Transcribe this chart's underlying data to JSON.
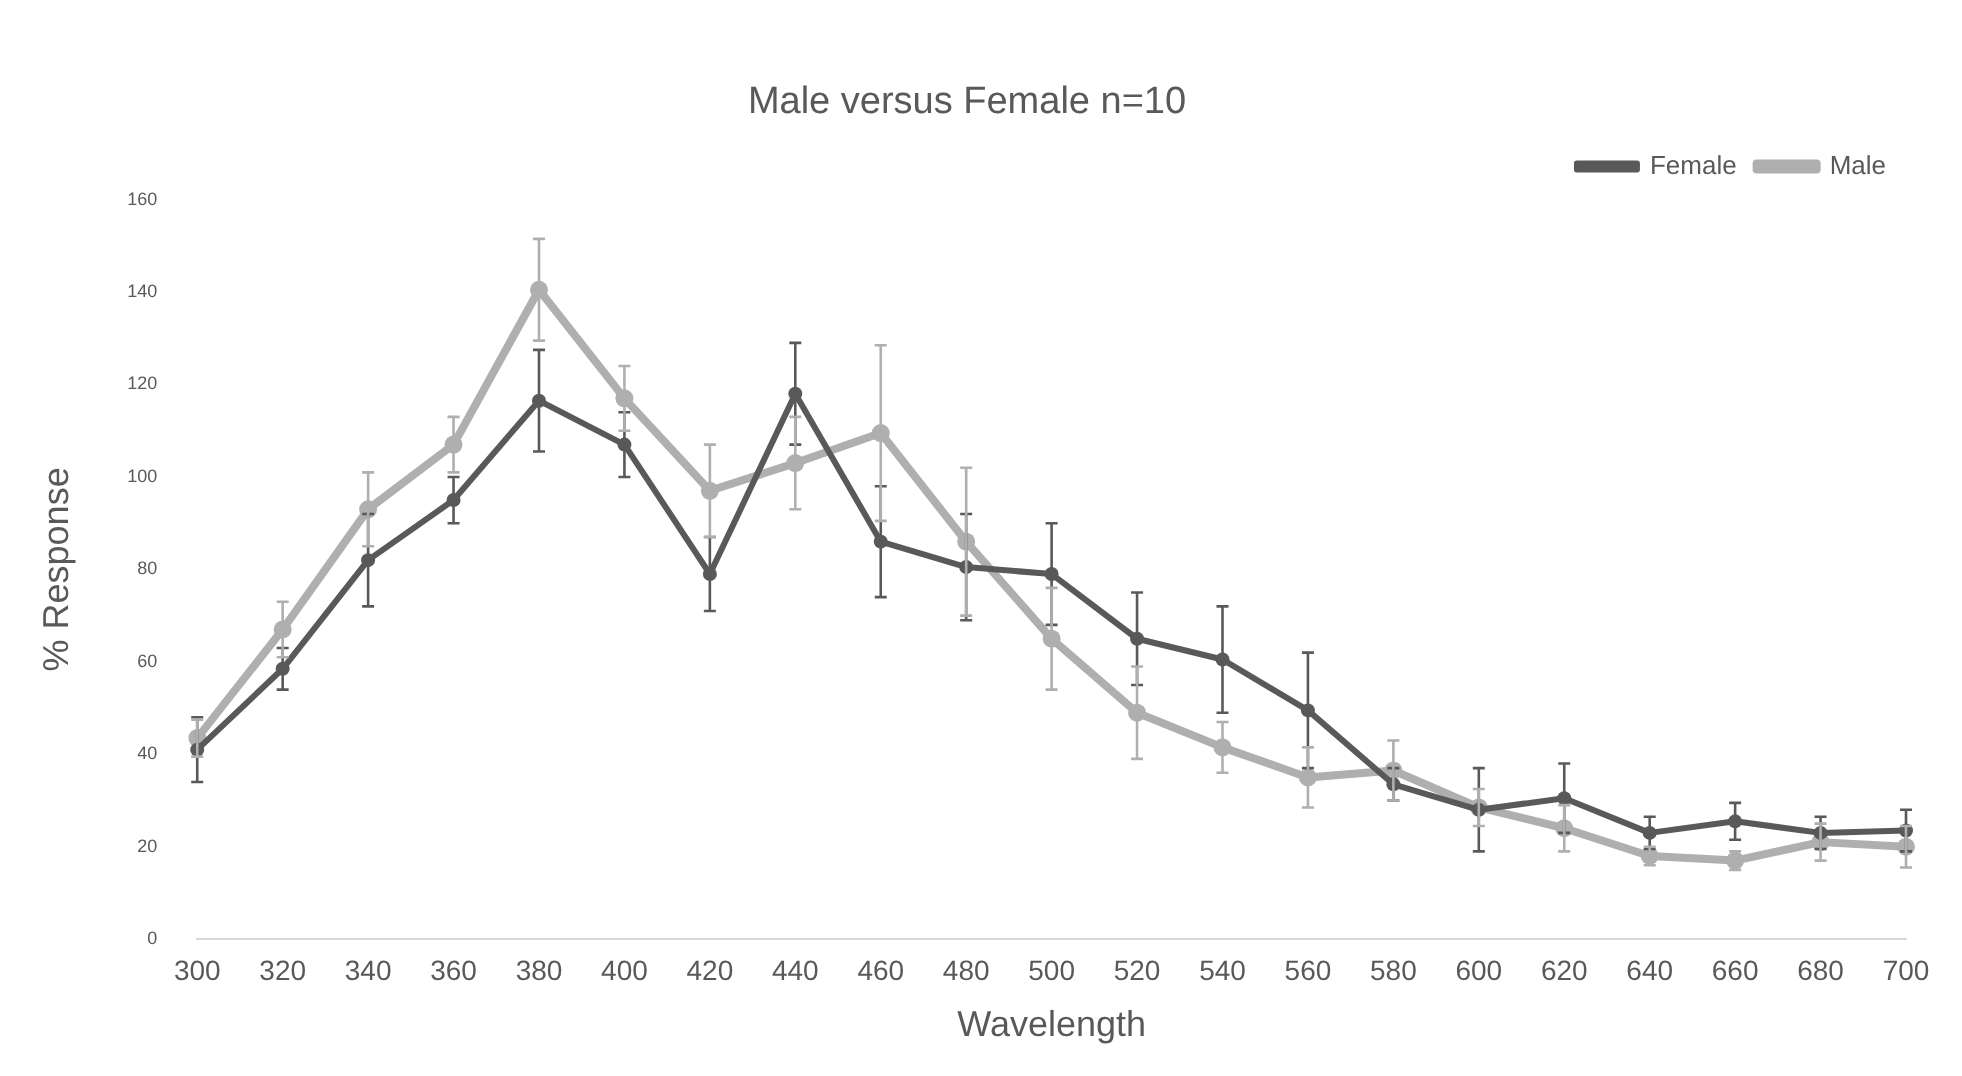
{
  "chart_data": {
    "type": "line",
    "title": "Male versus Female n=10",
    "xlabel": "Wavelength",
    "ylabel": "% Response",
    "categories": [
      "300",
      "320",
      "340",
      "360",
      "380",
      "400",
      "420",
      "440",
      "460",
      "480",
      "500",
      "520",
      "540",
      "560",
      "580",
      "600",
      "620",
      "640",
      "660",
      "680",
      "700"
    ],
    "series": [
      {
        "name": "Female",
        "color": "#595959",
        "values": [
          41,
          58.5,
          82,
          95,
          116.5,
          107,
          79,
          118,
          86,
          80.5,
          79,
          65,
          60.5,
          49.5,
          33.5,
          28,
          30.5,
          23,
          25.5,
          23,
          23.5
        ],
        "errors": [
          7,
          4.5,
          10,
          5,
          11,
          7,
          8,
          11,
          12,
          11.5,
          11,
          10,
          11.5,
          12.5,
          3.5,
          9,
          7.5,
          3.5,
          4,
          3.5,
          4.5
        ]
      },
      {
        "name": "Male",
        "color": "#afafaf",
        "values": [
          43.5,
          67,
          93,
          107,
          140.5,
          117,
          97,
          103,
          109.5,
          86,
          65,
          49,
          41.5,
          35,
          36.5,
          28.5,
          24,
          18,
          17,
          21,
          20
        ],
        "errors": [
          4,
          6,
          8,
          6,
          11,
          7,
          10,
          10,
          19,
          16,
          11,
          10,
          5.5,
          6.5,
          6.5,
          4,
          5,
          2,
          2,
          4,
          4.5
        ]
      }
    ],
    "ylim": [
      0,
      160
    ],
    "yticks": [
      0,
      20,
      40,
      60,
      80,
      100,
      120,
      140,
      160
    ],
    "grid": false,
    "legend": "top right",
    "marker": "circle",
    "line_style": "solid"
  }
}
